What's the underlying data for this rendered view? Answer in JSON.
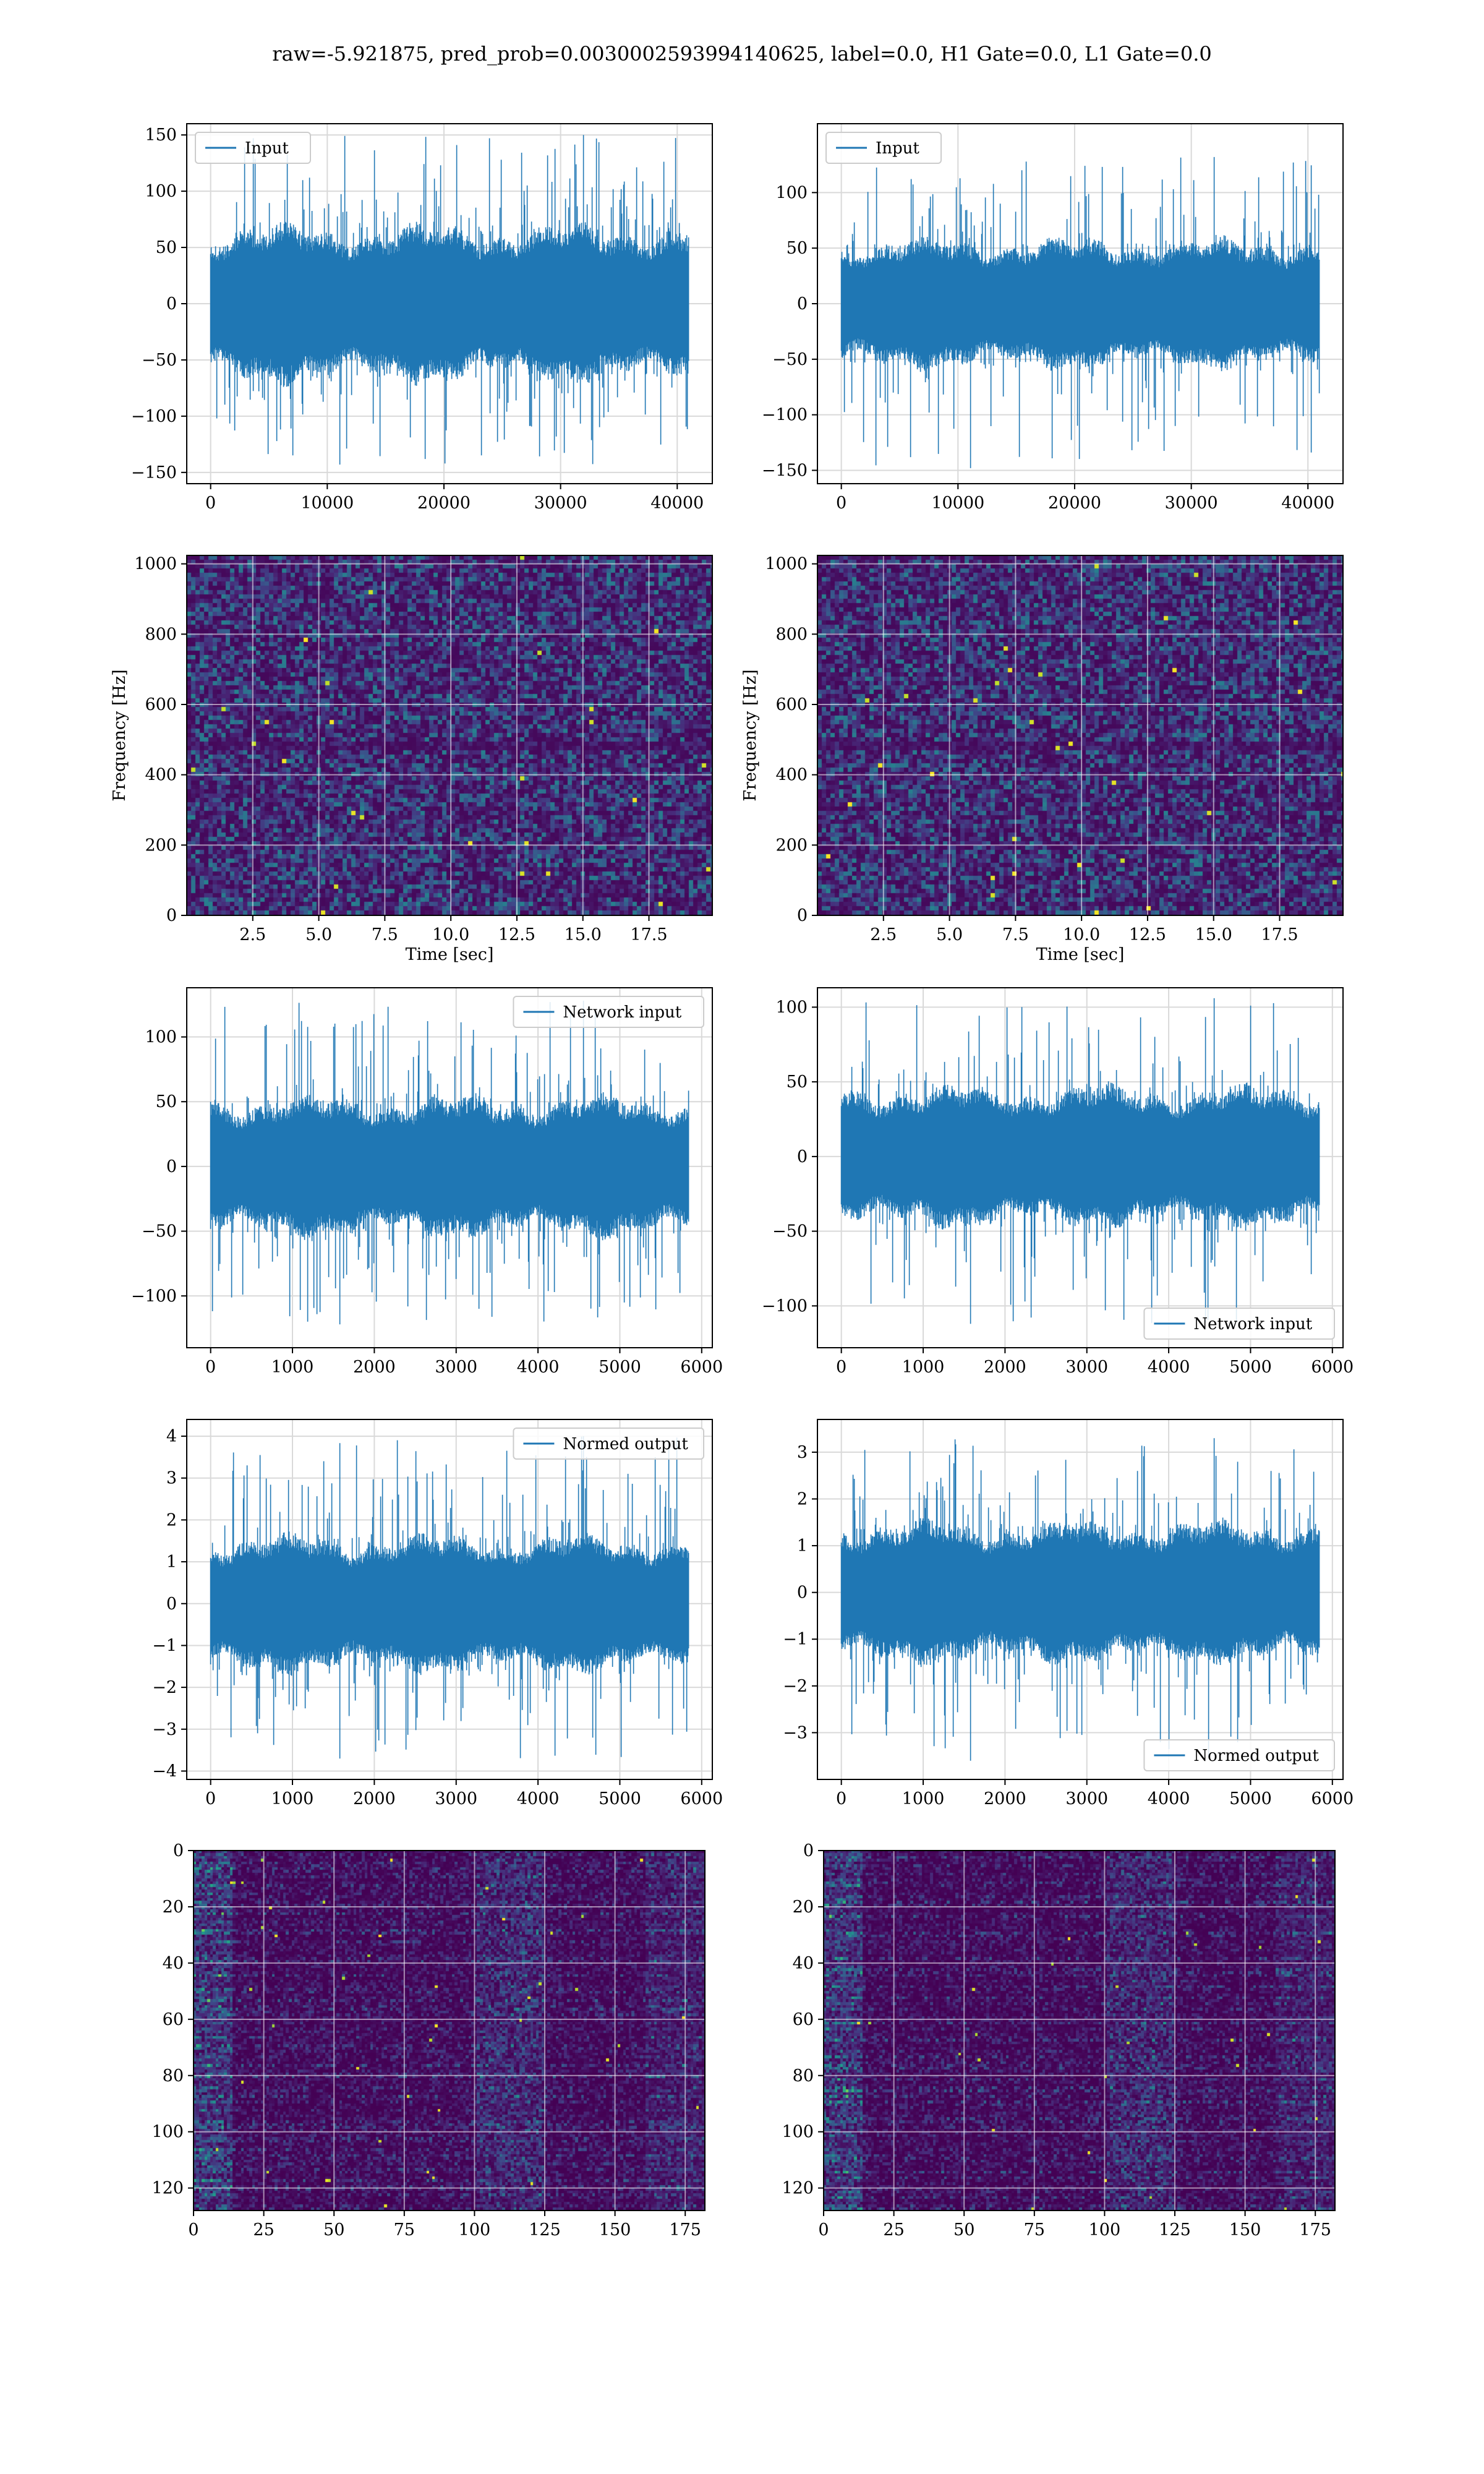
{
  "suptitle": "raw=-5.921875, pred_prob=0.0030002593994140625, label=0.0, H1 Gate=0.0, L1 Gate=0.0",
  "colors": {
    "series": "#1f77b4",
    "grid": "#d9d9d9",
    "viridis": [
      "#440154",
      "#482878",
      "#3e4989",
      "#31688e",
      "#26828e",
      "#1f9e89",
      "#35b779",
      "#6ece58",
      "#b5de2b",
      "#fde725"
    ]
  },
  "chart_data": [
    {
      "id": "input_h1",
      "type": "line",
      "legend": [
        "Input"
      ],
      "legend_loc": "upper left",
      "xlim": [
        -2048,
        43008
      ],
      "ylim": [
        -160,
        160
      ],
      "xticks": [
        0,
        10000,
        20000,
        30000,
        40000
      ],
      "yticks": [
        -150,
        -100,
        -50,
        0,
        50,
        100,
        150
      ],
      "x_extent": [
        0,
        40960
      ],
      "n_samples": 40960,
      "band": 62,
      "peak_max": 150,
      "peak_min": -143,
      "seed": 11
    },
    {
      "id": "input_l1",
      "type": "line",
      "legend": [
        "Input"
      ],
      "legend_loc": "upper left",
      "xlim": [
        -2048,
        43008
      ],
      "ylim": [
        -162,
        162
      ],
      "xticks": [
        0,
        10000,
        20000,
        30000,
        40000
      ],
      "yticks": [
        -150,
        -100,
        -50,
        0,
        50,
        100
      ],
      "x_extent": [
        0,
        40960
      ],
      "n_samples": 40960,
      "band": 52,
      "peak_max": 132,
      "peak_min": -148,
      "seed": 23
    },
    {
      "id": "spec_h1",
      "type": "heatmap",
      "xlabel": "Time [sec]",
      "ylabel": "Frequency [Hz]",
      "xlim": [
        0,
        19.9
      ],
      "ylim": [
        0,
        1024
      ],
      "xticks": [
        2.5,
        5.0,
        7.5,
        10.0,
        12.5,
        15.0,
        17.5
      ],
      "yticks": [
        0,
        200,
        400,
        600,
        800,
        1000
      ],
      "colormap": "viridis",
      "seed": 31
    },
    {
      "id": "spec_l1",
      "type": "heatmap",
      "xlabel": "Time [sec]",
      "ylabel": "Frequency [Hz]",
      "xlim": [
        0,
        19.9
      ],
      "ylim": [
        0,
        1024
      ],
      "xticks": [
        2.5,
        5.0,
        7.5,
        10.0,
        12.5,
        15.0,
        17.5
      ],
      "yticks": [
        0,
        200,
        400,
        600,
        800,
        1000
      ],
      "colormap": "viridis",
      "seed": 37
    },
    {
      "id": "net_h1",
      "type": "line",
      "legend": [
        "Network input"
      ],
      "legend_loc": "upper right",
      "xlim": [
        -292,
        6130
      ],
      "ylim": [
        -140,
        138
      ],
      "xticks": [
        0,
        1000,
        2000,
        3000,
        4000,
        5000,
        6000
      ],
      "yticks": [
        -100,
        -50,
        0,
        50,
        100
      ],
      "x_extent": [
        0,
        5838
      ],
      "n_samples": 5838,
      "band": 48,
      "peak_max": 128,
      "peak_min": -122,
      "seed": 41
    },
    {
      "id": "net_l1",
      "type": "line",
      "legend": [
        "Network input"
      ],
      "legend_loc": "lower right",
      "xlim": [
        -292,
        6130
      ],
      "ylim": [
        -128,
        113
      ],
      "xticks": [
        0,
        1000,
        2000,
        3000,
        4000,
        5000,
        6000
      ],
      "yticks": [
        -100,
        -50,
        0,
        50,
        100
      ],
      "x_extent": [
        0,
        5838
      ],
      "n_samples": 5838,
      "band": 42,
      "peak_max": 106,
      "peak_min": -112,
      "seed": 53
    },
    {
      "id": "norm_h1",
      "type": "line",
      "legend": [
        "Normed output"
      ],
      "legend_loc": "upper right",
      "xlim": [
        -292,
        6130
      ],
      "ylim": [
        -4.2,
        4.4
      ],
      "xticks": [
        0,
        1000,
        2000,
        3000,
        4000,
        5000,
        6000
      ],
      "yticks": [
        -4,
        -3,
        -2,
        -1,
        0,
        1,
        2,
        3,
        4
      ],
      "x_extent": [
        0,
        5838
      ],
      "n_samples": 5838,
      "band": 1.45,
      "peak_max": 4.0,
      "peak_min": -3.7,
      "seed": 61
    },
    {
      "id": "norm_l1",
      "type": "line",
      "legend": [
        "Normed output"
      ],
      "legend_loc": "lower right",
      "xlim": [
        -292,
        6130
      ],
      "ylim": [
        -4.0,
        3.7
      ],
      "xticks": [
        0,
        1000,
        2000,
        3000,
        4000,
        5000,
        6000
      ],
      "yticks": [
        -3,
        -2,
        -1,
        0,
        1,
        2,
        3
      ],
      "x_extent": [
        0,
        5838
      ],
      "n_samples": 5838,
      "band": 1.35,
      "peak_max": 3.3,
      "peak_min": -3.6,
      "seed": 67
    },
    {
      "id": "feat_h1",
      "type": "heatmap",
      "xlim": [
        0,
        182
      ],
      "ylim": [
        128,
        0
      ],
      "xticks": [
        0,
        25,
        50,
        75,
        100,
        125,
        150,
        175
      ],
      "yticks": [
        0,
        20,
        40,
        60,
        80,
        100,
        120
      ],
      "colormap": "viridis",
      "seed": 71
    },
    {
      "id": "feat_l1",
      "type": "heatmap",
      "xlim": [
        0,
        182
      ],
      "ylim": [
        128,
        0
      ],
      "xticks": [
        0,
        25,
        50,
        75,
        100,
        125,
        150,
        175
      ],
      "yticks": [
        0,
        20,
        40,
        60,
        80,
        100,
        120
      ],
      "colormap": "viridis",
      "seed": 79
    }
  ]
}
